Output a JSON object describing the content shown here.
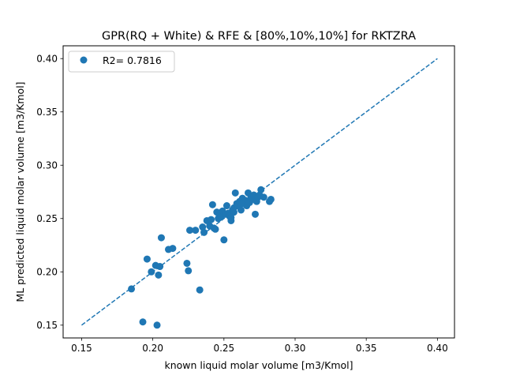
{
  "chart_data": {
    "type": "scatter",
    "title": "GPR(RQ + White) & RFE & [80%,10%,10%] for RKTZRA",
    "xlabel": "known liquid molar volume [m3/Kmol]",
    "ylabel": "ML predicted liquid molar volume [m3/Kmol]",
    "xlim": [
      0.137,
      0.412
    ],
    "ylim": [
      0.138,
      0.412
    ],
    "x_ticks": [
      0.15,
      0.2,
      0.25,
      0.3,
      0.35,
      0.4
    ],
    "x_tick_labels": [
      "0.15",
      "0.20",
      "0.25",
      "0.30",
      "0.35",
      "0.40"
    ],
    "y_ticks": [
      0.15,
      0.2,
      0.25,
      0.3,
      0.35,
      0.4
    ],
    "y_tick_labels": [
      "0.15",
      "0.20",
      "0.25",
      "0.30",
      "0.35",
      "0.40"
    ],
    "grid": false,
    "legend_position": "top-left",
    "series": [
      {
        "name": "R2= 0.7816",
        "color": "#1f77b4",
        "marker": "circle",
        "points": [
          [
            0.185,
            0.184
          ],
          [
            0.193,
            0.153
          ],
          [
            0.196,
            0.212
          ],
          [
            0.199,
            0.2
          ],
          [
            0.202,
            0.206
          ],
          [
            0.203,
            0.15
          ],
          [
            0.204,
            0.197
          ],
          [
            0.205,
            0.205
          ],
          [
            0.206,
            0.232
          ],
          [
            0.211,
            0.221
          ],
          [
            0.214,
            0.222
          ],
          [
            0.224,
            0.208
          ],
          [
            0.225,
            0.201
          ],
          [
            0.226,
            0.239
          ],
          [
            0.23,
            0.239
          ],
          [
            0.233,
            0.183
          ],
          [
            0.235,
            0.242
          ],
          [
            0.236,
            0.237
          ],
          [
            0.238,
            0.248
          ],
          [
            0.24,
            0.243
          ],
          [
            0.241,
            0.249
          ],
          [
            0.242,
            0.263
          ],
          [
            0.243,
            0.241
          ],
          [
            0.244,
            0.24
          ],
          [
            0.245,
            0.256
          ],
          [
            0.246,
            0.25
          ],
          [
            0.247,
            0.253
          ],
          [
            0.248,
            0.252
          ],
          [
            0.249,
            0.257
          ],
          [
            0.25,
            0.23
          ],
          [
            0.251,
            0.254
          ],
          [
            0.252,
            0.262
          ],
          [
            0.253,
            0.255
          ],
          [
            0.254,
            0.252
          ],
          [
            0.255,
            0.248
          ],
          [
            0.256,
            0.258
          ],
          [
            0.257,
            0.26
          ],
          [
            0.258,
            0.274
          ],
          [
            0.259,
            0.264
          ],
          [
            0.26,
            0.262
          ],
          [
            0.261,
            0.266
          ],
          [
            0.262,
            0.258
          ],
          [
            0.263,
            0.269
          ],
          [
            0.264,
            0.264
          ],
          [
            0.265,
            0.267
          ],
          [
            0.266,
            0.262
          ],
          [
            0.267,
            0.274
          ],
          [
            0.268,
            0.265
          ],
          [
            0.269,
            0.27
          ],
          [
            0.27,
            0.268
          ],
          [
            0.271,
            0.272
          ],
          [
            0.272,
            0.254
          ],
          [
            0.273,
            0.266
          ],
          [
            0.274,
            0.27
          ],
          [
            0.275,
            0.272
          ],
          [
            0.276,
            0.277
          ],
          [
            0.278,
            0.27
          ],
          [
            0.282,
            0.266
          ],
          [
            0.283,
            0.268
          ],
          [
            0.257,
            0.256
          ],
          [
            0.262,
            0.264
          ],
          [
            0.255,
            0.251
          ]
        ]
      },
      {
        "name": "",
        "type": "line",
        "style": "dashed",
        "color": "#1f77b4",
        "points": [
          [
            0.15,
            0.15
          ],
          [
            0.4,
            0.4
          ]
        ]
      }
    ]
  }
}
